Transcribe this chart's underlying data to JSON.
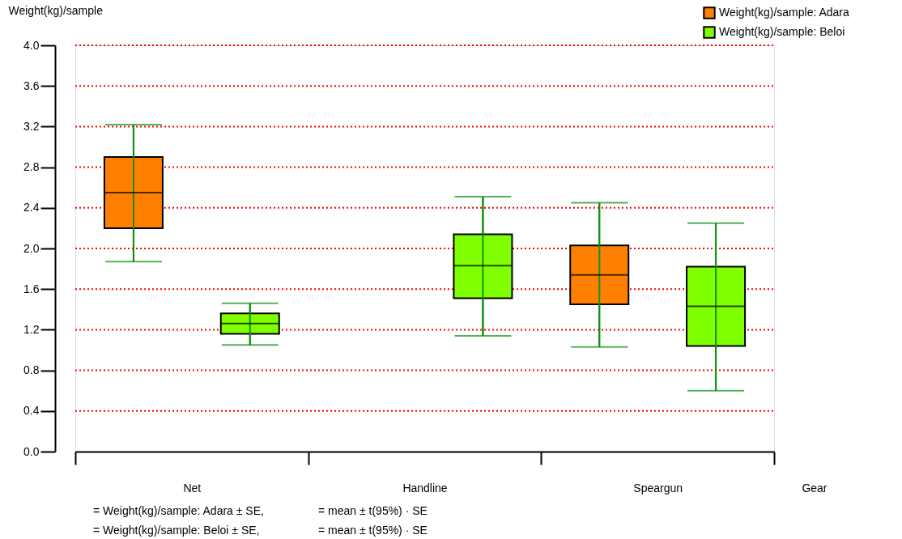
{
  "chart_data": {
    "type": "box",
    "ylabel": "Weight(kg)/sample",
    "xlabel": "Gear",
    "categories": [
      "Net",
      "Handline",
      "Speargun"
    ],
    "series": [
      {
        "name": "Weight(kg)/sample: Adara",
        "color": "#ff8000",
        "boxes": [
          {
            "low": 1.87,
            "q1": 2.2,
            "median": 2.55,
            "q3": 2.9,
            "high": 3.22
          },
          null,
          {
            "low": 1.03,
            "q1": 1.45,
            "median": 1.74,
            "q3": 2.03,
            "high": 2.45
          }
        ]
      },
      {
        "name": "Weight(kg)/sample: Beloi",
        "color": "#80ff00",
        "boxes": [
          {
            "low": 1.05,
            "q1": 1.16,
            "median": 1.26,
            "q3": 1.36,
            "high": 1.46
          },
          {
            "low": 1.14,
            "q1": 1.51,
            "median": 1.83,
            "q3": 2.14,
            "high": 2.51
          },
          {
            "low": 0.6,
            "q1": 1.04,
            "median": 1.43,
            "q3": 1.82,
            "high": 2.25
          }
        ]
      }
    ],
    "ylim": [
      0,
      4
    ],
    "yticks": [
      {
        "value": 0,
        "label": "0.0"
      },
      0.4,
      0.8,
      1.2,
      1.6,
      {
        "value": 2,
        "label": "2.0"
      },
      2.4,
      2.8,
      3.2,
      3.6,
      {
        "value": 4,
        "label": "4.0"
      }
    ],
    "grid": "y",
    "legend": "top right",
    "annotations": [
      "= Weight(kg)/sample: Adara ± SE,",
      "= mean ± t(95%) · SE",
      "= Weight(kg)/sample: Beloi ± SE,",
      "= mean ± t(95%) · SE"
    ]
  }
}
